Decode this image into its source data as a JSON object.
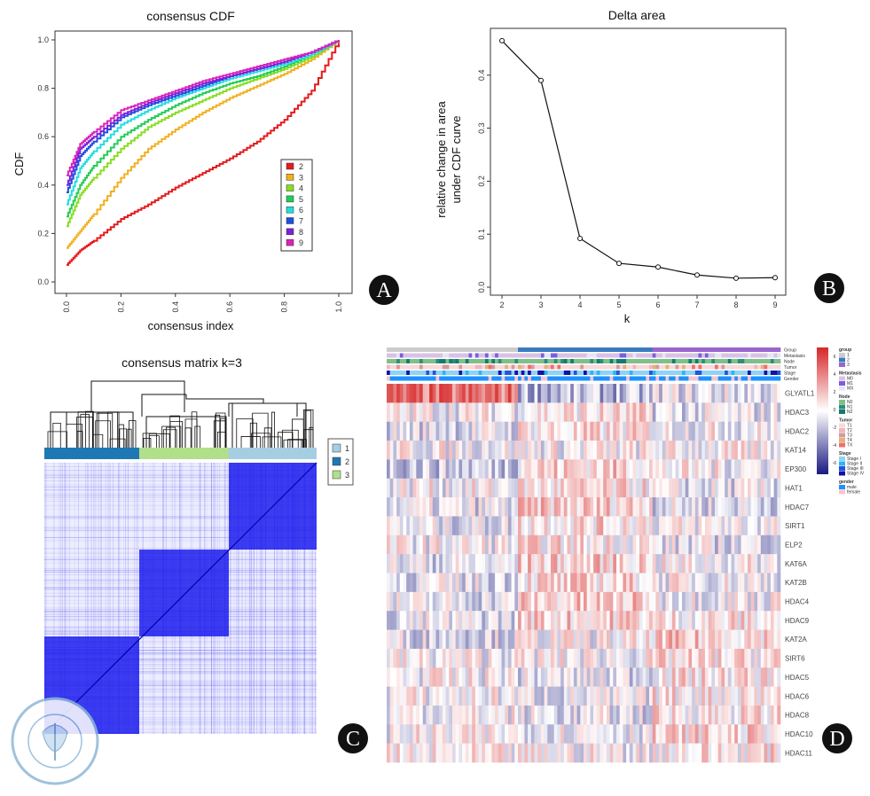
{
  "panel_labels": [
    "A",
    "B",
    "C",
    "D"
  ],
  "watermark": {
    "lettering": "CHINESE MEDICAL ASSOCIATION",
    "chinese": "中华医学会",
    "year": "1915"
  },
  "chart_data": [
    {
      "type": "line",
      "title": "consensus CDF",
      "xlabel": "consensus index",
      "ylabel": "CDF",
      "xlim": [
        0,
        1
      ],
      "ylim": [
        0,
        1
      ],
      "xticks": [
        "0.0",
        "0.2",
        "0.4",
        "0.6",
        "0.8",
        "1.0"
      ],
      "yticks": [
        "0.0",
        "0.2",
        "0.4",
        "0.6",
        "0.8",
        "1.0"
      ],
      "legend_placement": "right",
      "x": [
        0,
        0.05,
        0.1,
        0.2,
        0.3,
        0.4,
        0.5,
        0.6,
        0.7,
        0.8,
        0.9,
        1.0
      ],
      "series": [
        {
          "name": "2",
          "color": "#e41a1c",
          "values": [
            0.07,
            0.13,
            0.17,
            0.26,
            0.32,
            0.39,
            0.45,
            0.51,
            0.58,
            0.67,
            0.79,
            1.0
          ]
        },
        {
          "name": "3",
          "color": "#f0b020",
          "values": [
            0.14,
            0.21,
            0.28,
            0.43,
            0.55,
            0.63,
            0.7,
            0.76,
            0.81,
            0.86,
            0.92,
            1.0
          ]
        },
        {
          "name": "4",
          "color": "#88dd22",
          "values": [
            0.23,
            0.36,
            0.43,
            0.55,
            0.64,
            0.7,
            0.75,
            0.8,
            0.84,
            0.88,
            0.93,
            1.0
          ]
        },
        {
          "name": "5",
          "color": "#22cc55",
          "values": [
            0.27,
            0.4,
            0.48,
            0.6,
            0.67,
            0.73,
            0.78,
            0.82,
            0.85,
            0.89,
            0.94,
            1.0
          ]
        },
        {
          "name": "6",
          "color": "#22dddd",
          "values": [
            0.32,
            0.47,
            0.54,
            0.65,
            0.71,
            0.76,
            0.8,
            0.84,
            0.87,
            0.9,
            0.94,
            1.0
          ]
        },
        {
          "name": "7",
          "color": "#1f4fe0",
          "values": [
            0.37,
            0.52,
            0.58,
            0.68,
            0.73,
            0.77,
            0.81,
            0.85,
            0.88,
            0.91,
            0.95,
            1.0
          ]
        },
        {
          "name": "8",
          "color": "#7a22dd",
          "values": [
            0.4,
            0.55,
            0.6,
            0.69,
            0.74,
            0.78,
            0.82,
            0.85,
            0.88,
            0.91,
            0.95,
            1.0
          ]
        },
        {
          "name": "9",
          "color": "#dd22bb",
          "values": [
            0.44,
            0.57,
            0.62,
            0.71,
            0.75,
            0.79,
            0.83,
            0.86,
            0.89,
            0.92,
            0.95,
            1.0
          ]
        }
      ]
    },
    {
      "type": "line",
      "title": "Delta area",
      "xlabel": "k",
      "ylabel": [
        "relative change in area",
        "under CDF curve"
      ],
      "x": [
        2,
        3,
        4,
        5,
        6,
        7,
        8,
        9
      ],
      "values": [
        0.465,
        0.39,
        0.092,
        0.045,
        0.038,
        0.023,
        0.017,
        0.018
      ],
      "xticks": [
        "2",
        "3",
        "4",
        "5",
        "6",
        "7",
        "8",
        "9"
      ],
      "yticks": [
        "0.0",
        "0.1",
        "0.2",
        "0.3",
        "0.4"
      ],
      "ylim": [
        0,
        0.48
      ]
    },
    {
      "type": "heatmap",
      "title": "consensus matrix k=3",
      "legend": [
        {
          "name": "1",
          "color": "#a6cee3"
        },
        {
          "name": "2",
          "color": "#1f78b4"
        },
        {
          "name": "3",
          "color": "#b2df8a"
        }
      ],
      "fill_color": "#1a1aee"
    },
    {
      "type": "heatmap",
      "rows": [
        "GLYATL1",
        "HDAC3",
        "HDAC2",
        "KAT14",
        "EP300",
        "HAT1",
        "HDAC7",
        "SIRT1",
        "ELP2",
        "KAT6A",
        "KAT2B",
        "HDAC4",
        "HDAC9",
        "KAT2A",
        "SIRT6",
        "HDAC5",
        "HDAC6",
        "HDAC8",
        "HDAC10",
        "HDAC11"
      ],
      "annotation_tracks": [
        "Group",
        "Metastasis",
        "Node",
        "Tumor",
        "Stage",
        "Gender"
      ],
      "color_scale": {
        "ticks": [
          "6",
          "4",
          "2",
          "0",
          "-2",
          "-4",
          "-6"
        ],
        "high": "#d62728",
        "mid": "#ffffff",
        "low": "#1a1a80"
      },
      "legend_groups": [
        {
          "title": "group",
          "items": [
            {
              "label": "1",
              "color": "#cccccc"
            },
            {
              "label": "2",
              "color": "#3a7cc0"
            },
            {
              "label": "3",
              "color": "#9966cc"
            }
          ]
        },
        {
          "title": "Metastasis",
          "items": [
            {
              "label": "M0",
              "color": "#d9c2e6"
            },
            {
              "label": "M1",
              "color": "#7b5ce0"
            },
            {
              "label": "MX",
              "color": "#e8e4f6"
            }
          ]
        },
        {
          "title": "Node",
          "items": [
            {
              "label": "N0",
              "color": "#7fbf8a"
            },
            {
              "label": "N1",
              "color": "#2e8b7a"
            },
            {
              "label": "N2",
              "color": "#147a70"
            }
          ]
        },
        {
          "title": "Tumor",
          "items": [
            {
              "label": "T1",
              "color": "#f9d9d9"
            },
            {
              "label": "T2",
              "color": "#f2b6bc"
            },
            {
              "label": "T3",
              "color": "#d49a9a"
            },
            {
              "label": "T4",
              "color": "#e2b27a"
            },
            {
              "label": "TX",
              "color": "#ef6e6e"
            }
          ]
        },
        {
          "title": "Stage",
          "items": [
            {
              "label": "Stage I",
              "color": "#8fd3f5"
            },
            {
              "label": "Stage II",
              "color": "#29b6f6"
            },
            {
              "label": "Stage III",
              "color": "#2255dd"
            },
            {
              "label": "Stage IV",
              "color": "#1111aa"
            }
          ]
        },
        {
          "title": "gender",
          "items": [
            {
              "label": "male",
              "color": "#1e90ff"
            },
            {
              "label": "female",
              "color": "#f6c6d0"
            }
          ]
        }
      ]
    }
  ]
}
